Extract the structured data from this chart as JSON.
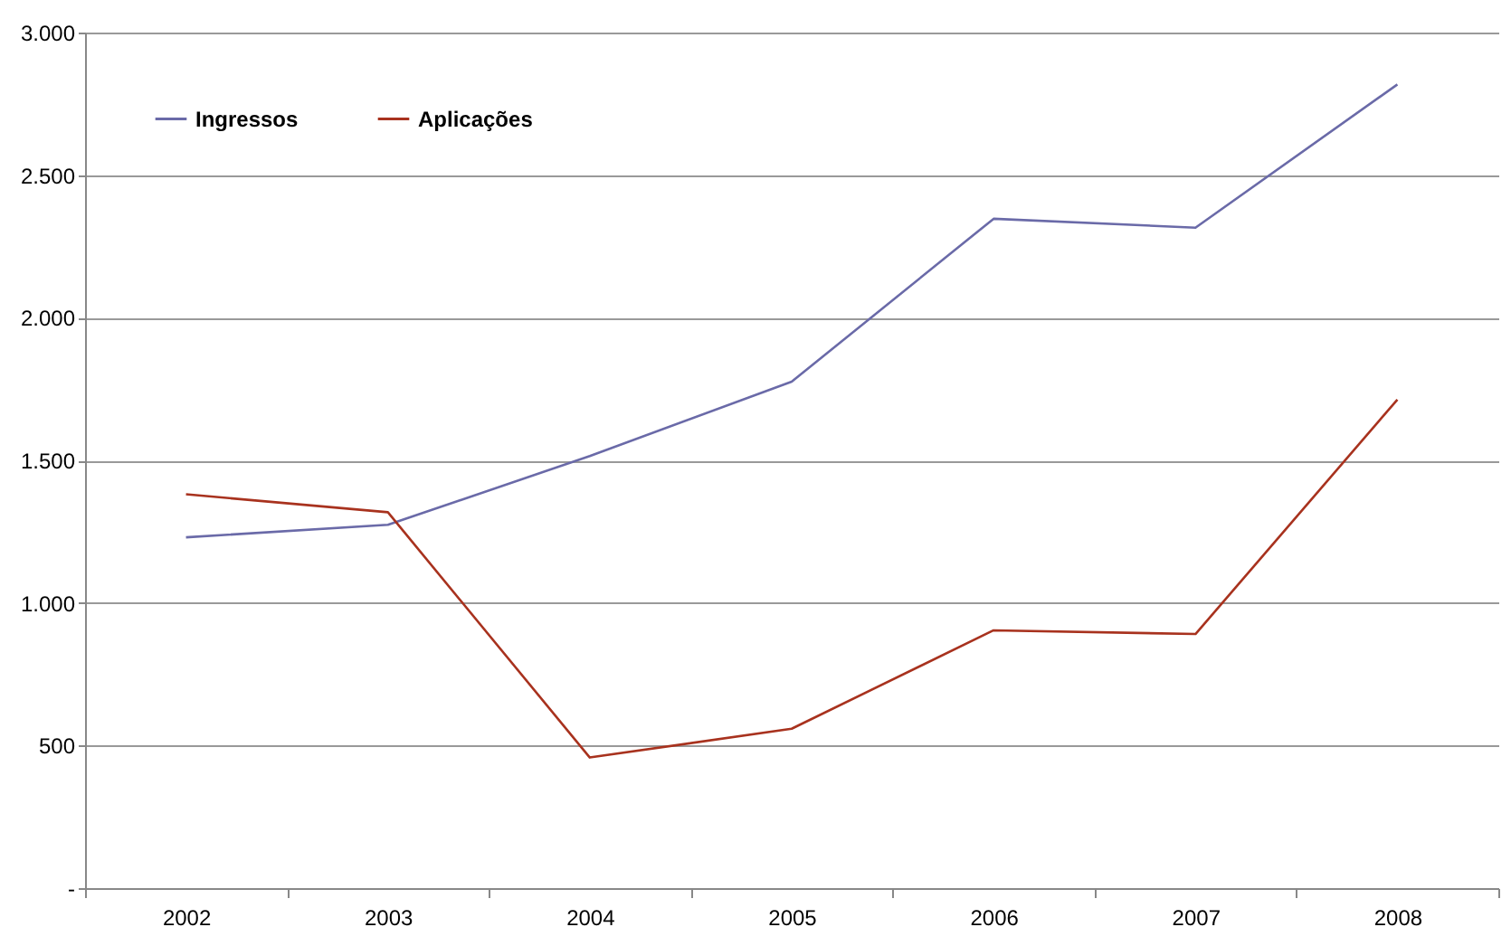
{
  "chart_data": {
    "type": "line",
    "categories": [
      "2002",
      "2003",
      "2004",
      "2005",
      "2006",
      "2007",
      "2008"
    ],
    "series": [
      {
        "name": "Ingressos",
        "color": "#6a6aa8",
        "values": [
          1230,
          1274,
          1515,
          1776,
          2347,
          2316,
          2818
        ]
      },
      {
        "name": "Aplicações",
        "color": "#a8321e",
        "values": [
          1381,
          1318,
          458,
          559,
          904,
          891,
          1713
        ]
      }
    ],
    "ylim": [
      0,
      3000
    ],
    "yticks": [
      {
        "value": 0,
        "label": "-"
      },
      {
        "value": 500,
        "label": "500"
      },
      {
        "value": 1000,
        "label": "1.000"
      },
      {
        "value": 1500,
        "label": "1.500"
      },
      {
        "value": 2000,
        "label": "2.000"
      },
      {
        "value": 2500,
        "label": "2.500"
      },
      {
        "value": 3000,
        "label": "3.000"
      }
    ],
    "grid": "y",
    "legend": "top left",
    "marker": "none",
    "line_style": "solid"
  }
}
